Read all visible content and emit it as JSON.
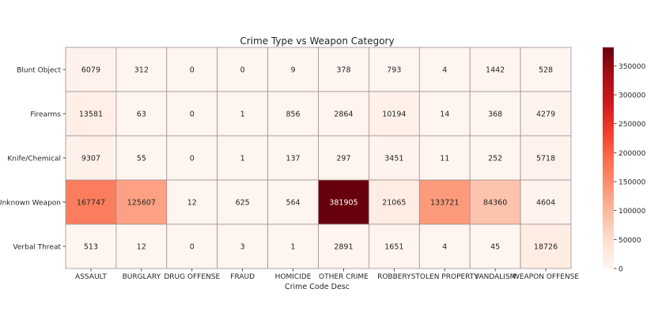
{
  "chart_data": {
    "type": "heatmap",
    "title": "Crime Type vs Weapon Category",
    "xlabel": "Crime Code Desc",
    "ylabel": "",
    "x_categories": [
      "ASSAULT",
      "BURGLARY",
      "DRUG OFFENSE",
      "FRAUD",
      "HOMICIDE",
      "OTHER CRIME",
      "ROBBERY",
      "STOLEN PROPERTY",
      "VANDALISM",
      "WEAPON OFFENSE"
    ],
    "y_categories": [
      "Blunt Object",
      "Firearms",
      "Knife/Chemical",
      "Unknown Weapon",
      "Verbal Threat"
    ],
    "values": [
      [
        6079,
        312,
        0,
        0,
        9,
        378,
        793,
        4,
        1442,
        528
      ],
      [
        13581,
        63,
        0,
        1,
        856,
        2864,
        10194,
        14,
        368,
        4279
      ],
      [
        9307,
        55,
        0,
        1,
        137,
        297,
        3451,
        11,
        252,
        5718
      ],
      [
        167747,
        125607,
        12,
        625,
        564,
        381905,
        21065,
        133721,
        84360,
        4604
      ],
      [
        513,
        12,
        0,
        3,
        1,
        2891,
        1651,
        4,
        45,
        18726
      ]
    ],
    "annotations": true,
    "colormap": "Reds",
    "vmin": 0,
    "vmax": 381905,
    "colorbar": {
      "ticks": [
        0,
        50000,
        100000,
        150000,
        200000,
        250000,
        300000,
        350000
      ],
      "tick_labels": [
        "0",
        "50000",
        "100000",
        "150000",
        "200000",
        "250000",
        "300000",
        "350000"
      ]
    },
    "cell_border_color": "#a08f8f",
    "text_color_dark": "#262626",
    "text_color_light": "#ffffff"
  }
}
